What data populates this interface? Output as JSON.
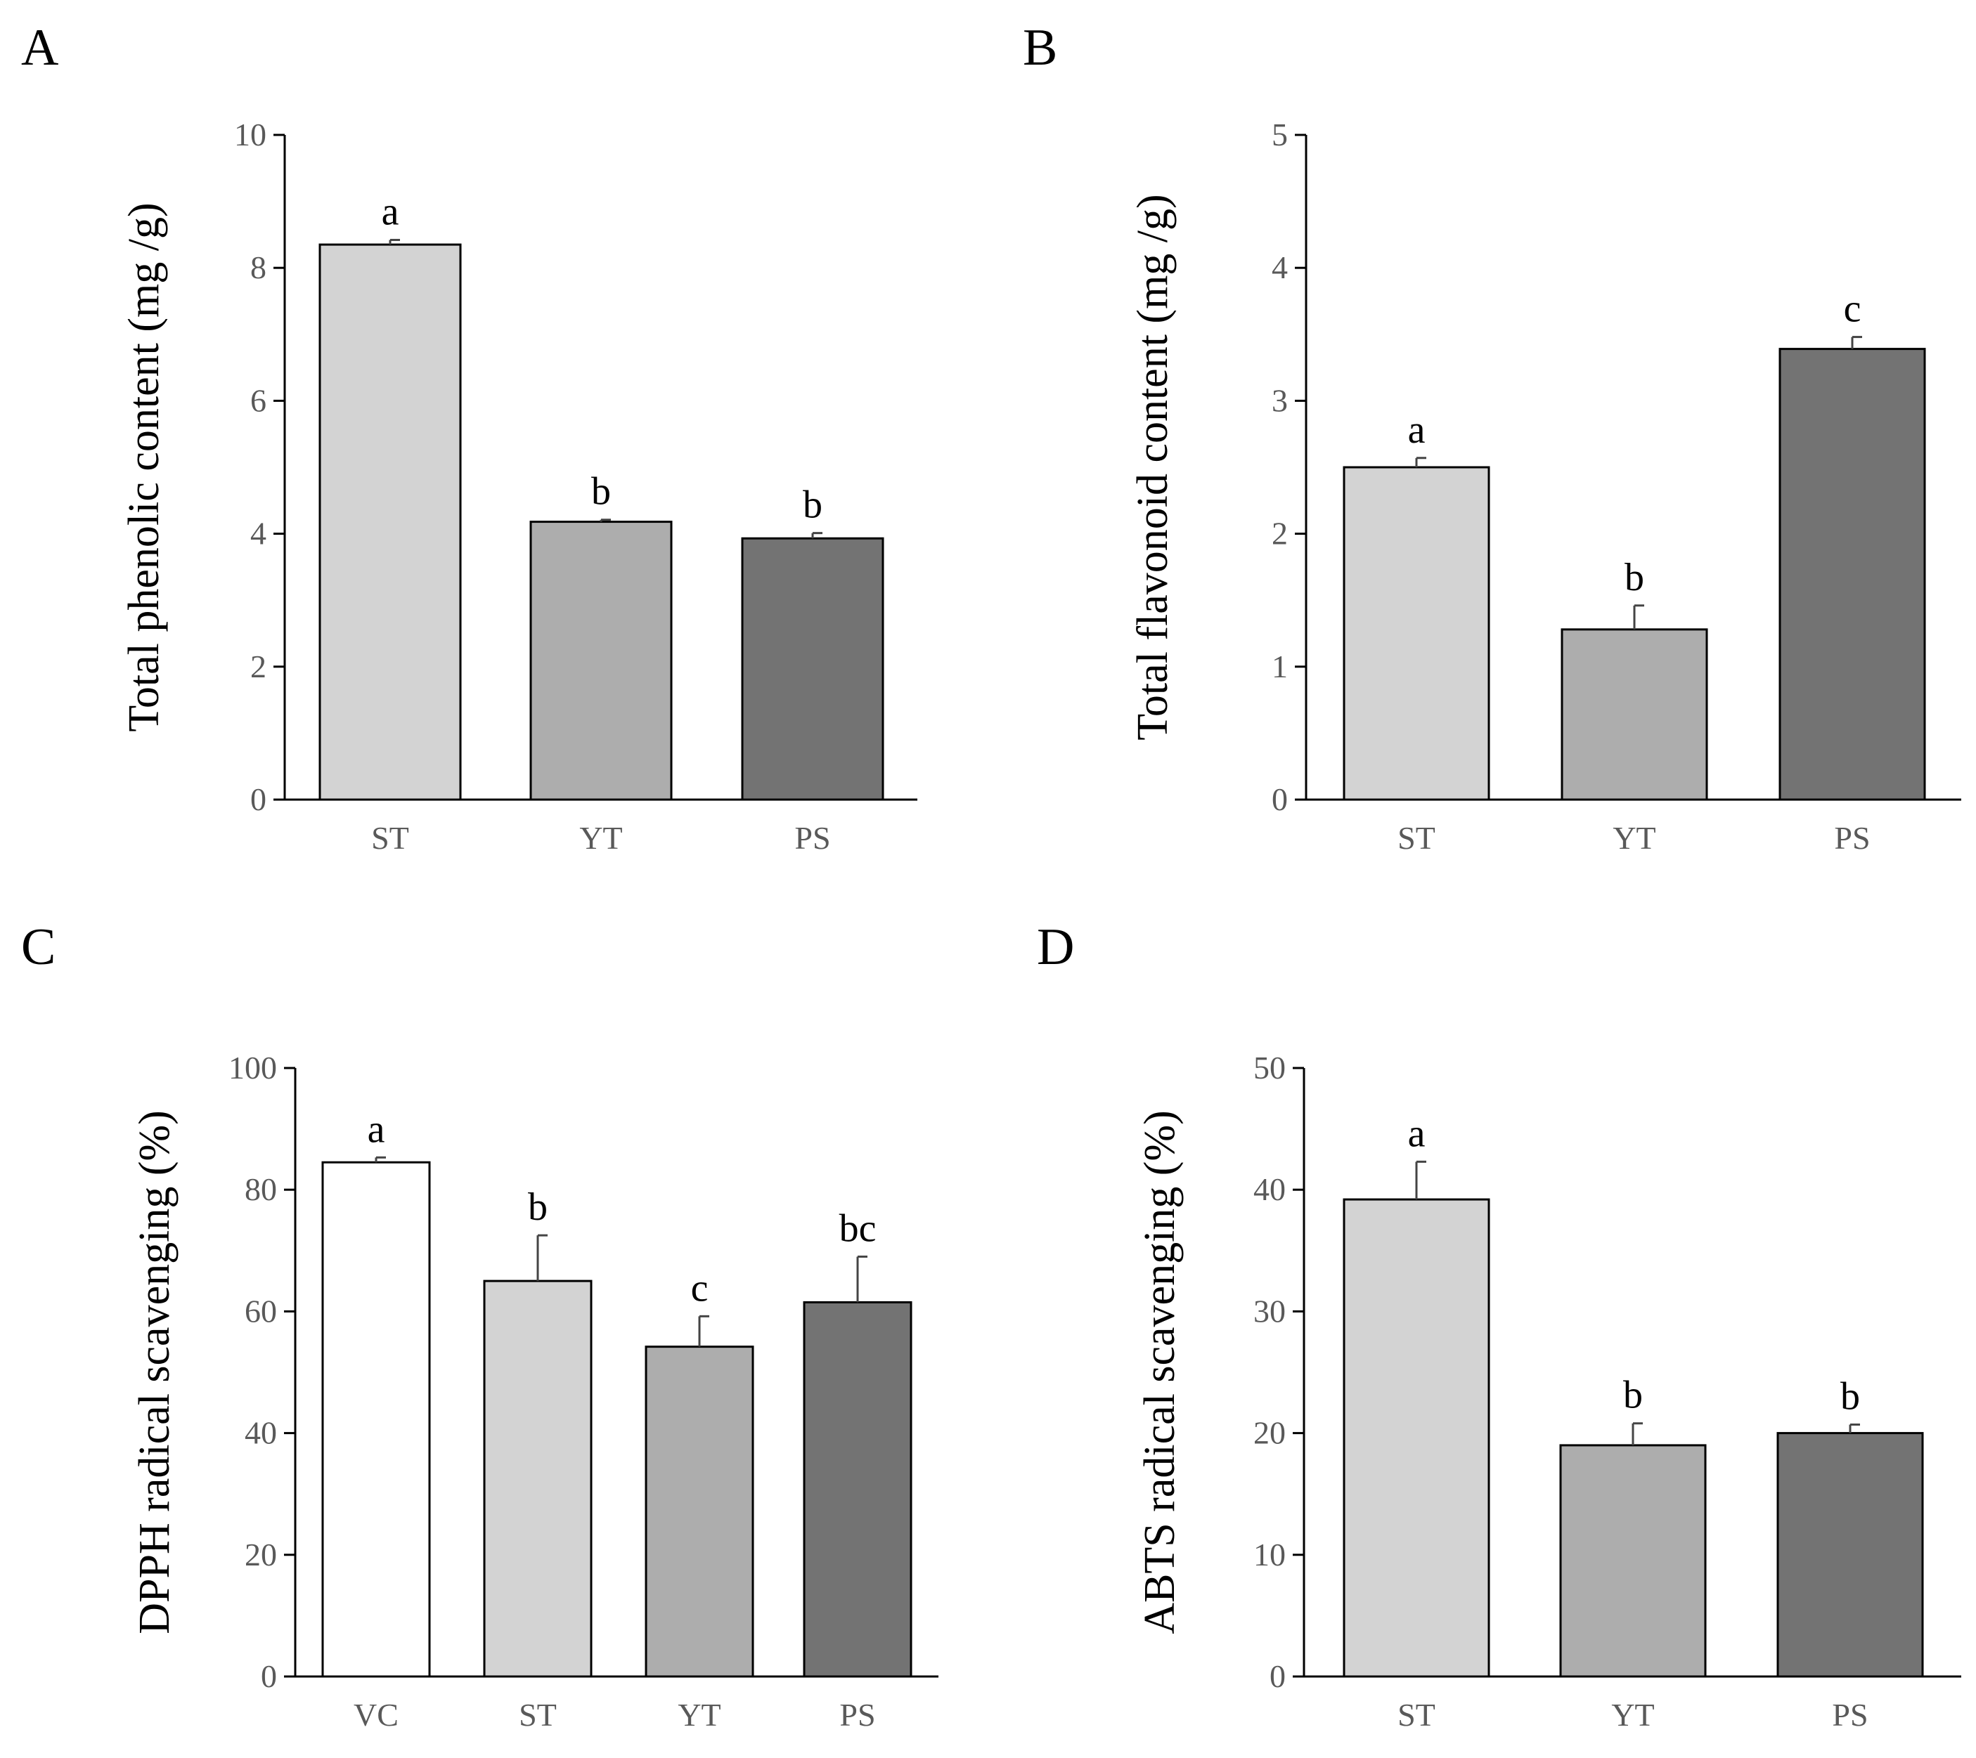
{
  "figure": {
    "colors": {
      "VC": "#ffffff",
      "ST": "#d3d3d3",
      "YT": "#adadad",
      "PS": "#737373"
    }
  },
  "chart_data": [
    {
      "panel": "A",
      "type": "bar",
      "title": "",
      "xlabel": "",
      "ylabel": "Total phenolic content (mg /g)",
      "ylim": [
        0,
        10
      ],
      "yticks": [
        0,
        2,
        4,
        6,
        8,
        10
      ],
      "categories": [
        "ST",
        "YT",
        "PS"
      ],
      "values": [
        8.35,
        4.18,
        3.93
      ],
      "errors": [
        0.07,
        0.03,
        0.08
      ],
      "significance": [
        "a",
        "b",
        "b"
      ],
      "grid": false
    },
    {
      "panel": "B",
      "type": "bar",
      "title": "",
      "xlabel": "",
      "ylabel": "Total flavonoid content (mg /g)",
      "ylim": [
        0,
        5
      ],
      "yticks": [
        0,
        1,
        2,
        3,
        4,
        5
      ],
      "categories": [
        "ST",
        "YT",
        "PS"
      ],
      "values": [
        2.5,
        1.28,
        3.39
      ],
      "errors": [
        0.07,
        0.18,
        0.09
      ],
      "significance": [
        "a",
        "b",
        "c"
      ],
      "grid": false
    },
    {
      "panel": "C",
      "type": "bar",
      "title": "",
      "xlabel": "",
      "ylabel": "DPPH radical scavenging (%)",
      "ylim": [
        0,
        100
      ],
      "yticks": [
        0,
        20,
        40,
        60,
        80,
        100
      ],
      "categories": [
        "VC",
        "ST",
        "YT",
        "PS"
      ],
      "values": [
        84.5,
        65.0,
        54.2,
        61.5
      ],
      "errors": [
        0.8,
        7.5,
        5.0,
        7.5
      ],
      "significance": [
        "a",
        "b",
        "c",
        "bc"
      ],
      "grid": false
    },
    {
      "panel": "D",
      "type": "bar",
      "title": "",
      "xlabel": "",
      "ylabel": "ABTS radical scavenging (%)",
      "ylim": [
        0,
        50
      ],
      "yticks": [
        0,
        10,
        20,
        30,
        40,
        50
      ],
      "categories": [
        "ST",
        "YT",
        "PS"
      ],
      "values": [
        39.2,
        19.0,
        20.0
      ],
      "errors": [
        3.1,
        1.8,
        0.7
      ],
      "significance": [
        "a",
        "b",
        "b"
      ],
      "grid": false
    }
  ]
}
